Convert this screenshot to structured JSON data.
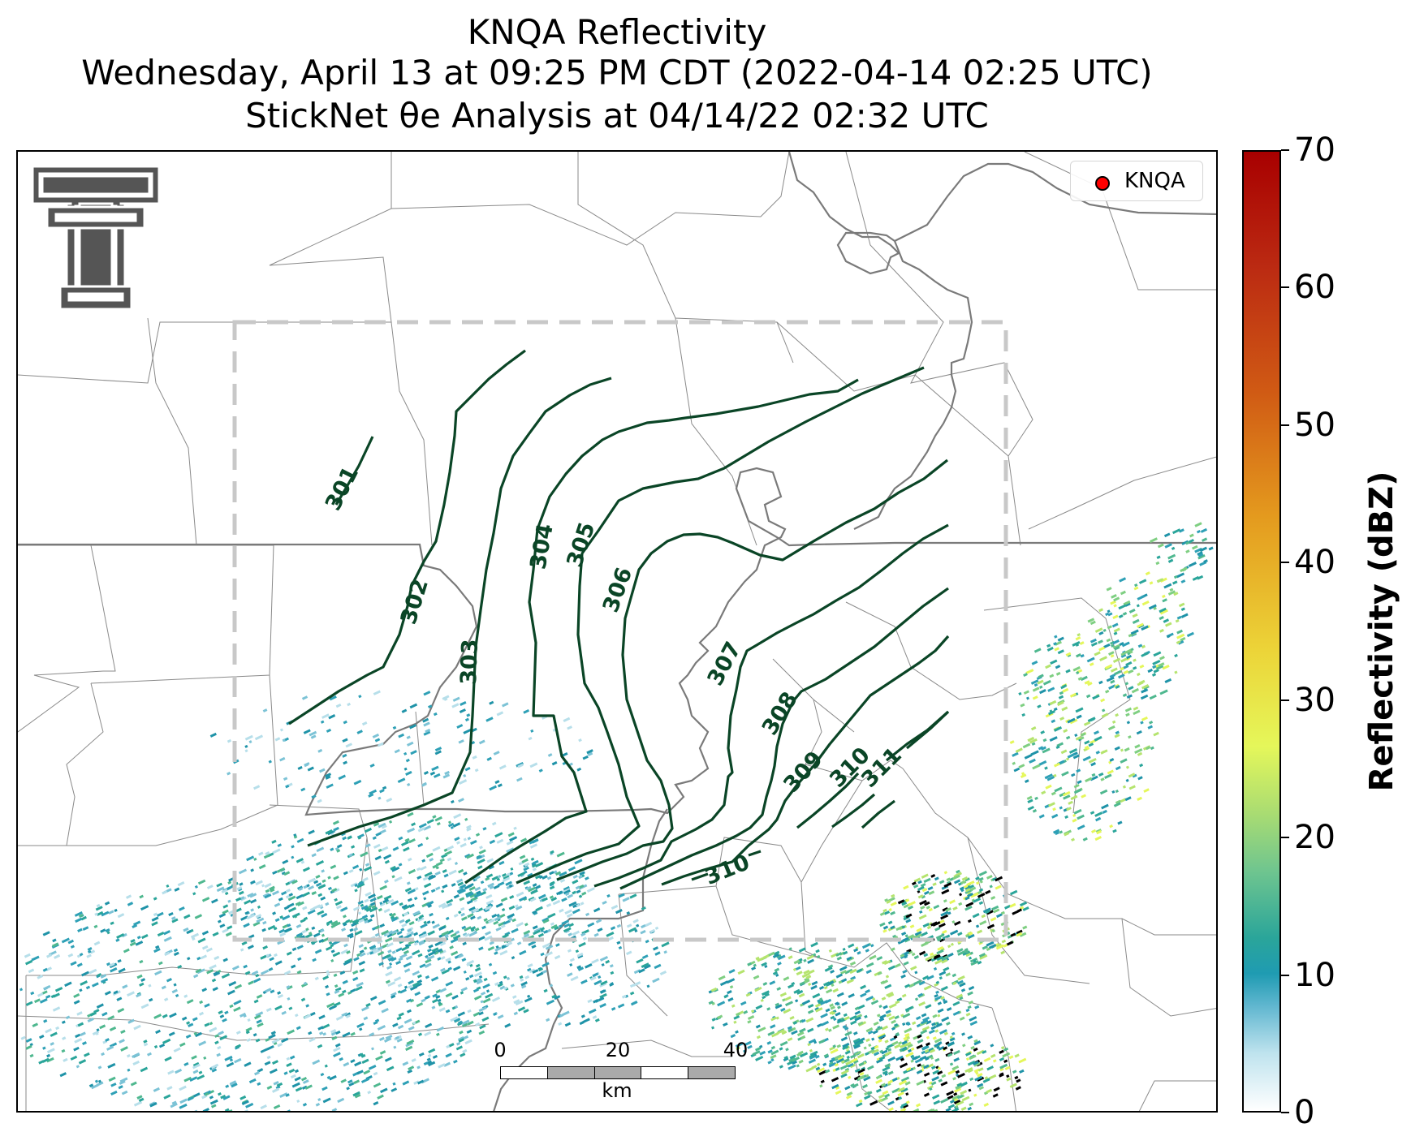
{
  "header": {
    "title": "KNQA Reflectivity",
    "subtitle": "Wednesday, April 13 at 09:25 PM CDT (2022-04-14 02:25 UTC)",
    "analysis": "StickNet θe Analysis at 04/14/22 02:32 UTC"
  },
  "legend": {
    "label": "KNQA",
    "marker_color": "#ff0000"
  },
  "colorbar": {
    "label": "Reflectivity (dBZ)",
    "min": 0,
    "max": 70,
    "ticks": [
      "0",
      "10",
      "20",
      "30",
      "40",
      "50",
      "60",
      "70"
    ],
    "colors_low_to_high": [
      "#ffffff",
      "#1f9bb2",
      "#6fc58f",
      "#e5f75a",
      "#e4b520",
      "#d05a14",
      "#a80000"
    ]
  },
  "scale_bar": {
    "ticks": [
      "0",
      "20",
      "40"
    ],
    "units": "km"
  },
  "contours": {
    "color": "#0a4526",
    "field": "θe (K)",
    "levels": [
      "301",
      "302",
      "303",
      "304",
      "305",
      "306",
      "307",
      "308",
      "309",
      "310",
      "311",
      "310"
    ]
  },
  "analysis_domain": {
    "style": "dashed",
    "color": "#c8c8c8"
  },
  "logo": {
    "icon": "double-t-logo-icon"
  }
}
